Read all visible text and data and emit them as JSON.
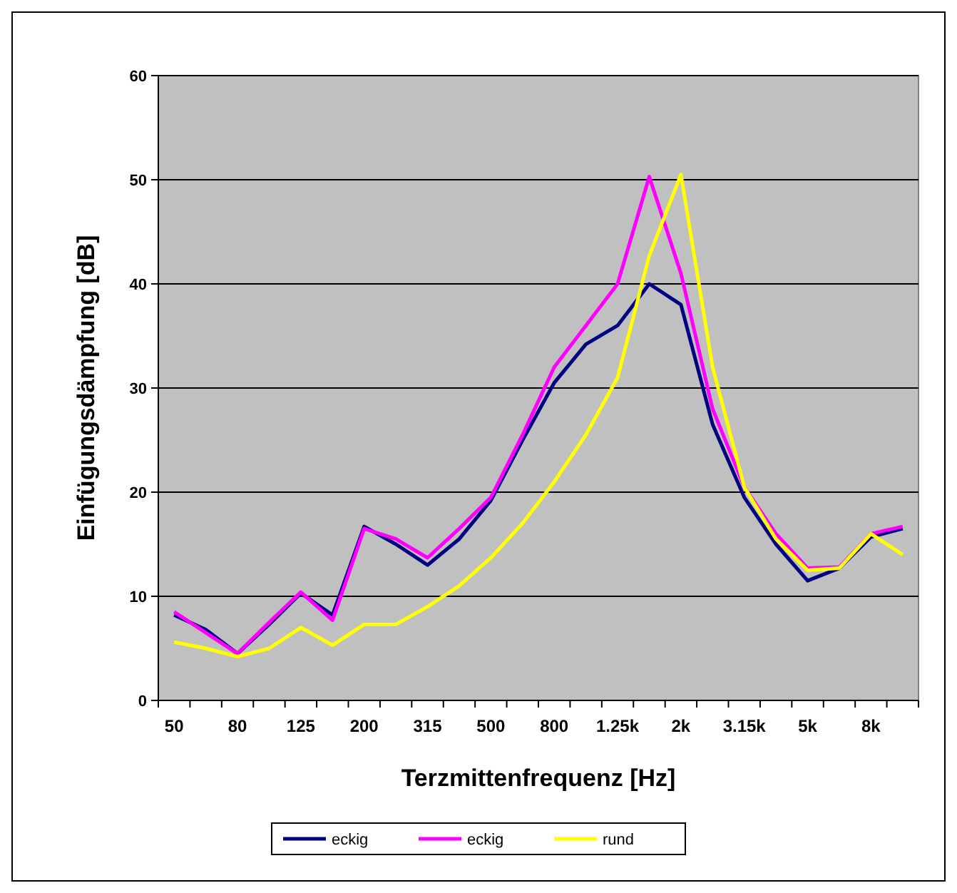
{
  "chart_data": {
    "type": "line",
    "xlabel": "Terzmittenfrequenz [Hz]",
    "ylabel": "Einfügungsdämpfung [dB]",
    "categories": [
      "50",
      null,
      "80",
      null,
      "125",
      null,
      "200",
      null,
      "315",
      null,
      "500",
      null,
      "800",
      null,
      "1.25k",
      null,
      "2k",
      null,
      "3.15k",
      null,
      "5k",
      null,
      "8k",
      null
    ],
    "series": [
      {
        "name": "eckig",
        "color": "#000080",
        "values": [
          8.2,
          6.8,
          4.5,
          7.3,
          10.3,
          8.2,
          16.7,
          15.0,
          13.0,
          15.5,
          19.2,
          25,
          30.5,
          34.2,
          36,
          40,
          38,
          26.5,
          19.5,
          15,
          11.5,
          12.7,
          15.7,
          16.5
        ]
      },
      {
        "name": "eckig",
        "color": "#ff00ff",
        "values": [
          8.5,
          6.5,
          4.5,
          7.5,
          10.4,
          7.7,
          16.5,
          15.5,
          13.7,
          16.5,
          19.5,
          25.5,
          32,
          36,
          40,
          50.3,
          41,
          28,
          20.5,
          16,
          12.7,
          12.8,
          16,
          16.7
        ]
      },
      {
        "name": "rund",
        "color": "#ffff00",
        "values": [
          5.6,
          5.0,
          4.2,
          5.0,
          7.0,
          5.3,
          7.3,
          7.3,
          9.0,
          11.0,
          13.7,
          17.0,
          21,
          25.5,
          31,
          42.7,
          50.5,
          32,
          20.5,
          15.5,
          12.5,
          12.7,
          16.0,
          14.0
        ]
      }
    ],
    "ylim": [
      0,
      60
    ],
    "yticks": [
      0,
      10,
      20,
      30,
      40,
      50,
      60
    ],
    "grid": "y",
    "legend": "bottom",
    "marker": "none",
    "line_style": "solid"
  }
}
